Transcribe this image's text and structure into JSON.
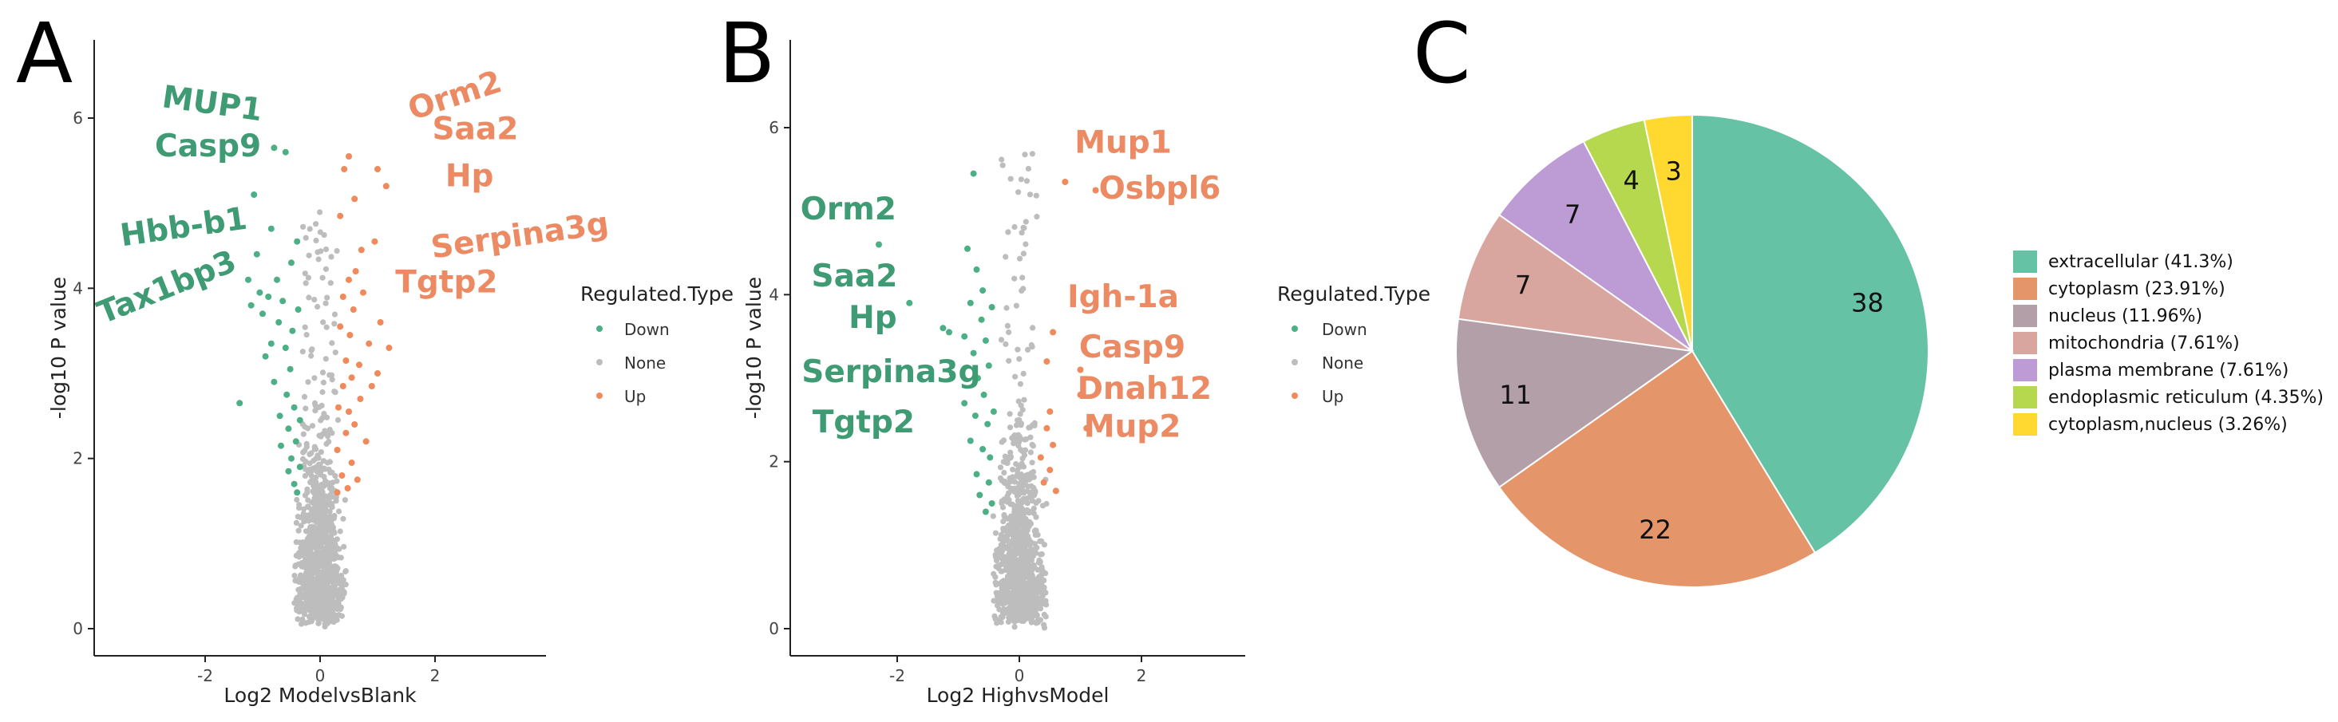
{
  "chart_data": [
    {
      "type": "scatter",
      "panel": "A",
      "xlabel": "Log2 ModelvsBlank",
      "ylabel": "-log10 P value",
      "xlim": [
        -4,
        4
      ],
      "ylim": [
        -0.2,
        7.0
      ],
      "xticks": [
        -2,
        0,
        2
      ],
      "yticks": [
        0,
        2,
        4,
        6
      ],
      "legend": {
        "title": "Regulated.Type",
        "entries": [
          "Down",
          "None",
          "Up"
        ],
        "position": "right"
      },
      "colors": {
        "Down": "#4daf85",
        "None": "#bdbdbd",
        "Up": "#f08a5d"
      },
      "labels_down": [
        {
          "text": "MUP1",
          "x": -1.9,
          "y": 6.05,
          "rot": 8
        },
        {
          "text": "Casp9",
          "x": -1.95,
          "y": 5.55,
          "rot": 0
        },
        {
          "text": "Hbb-b1",
          "x": -2.35,
          "y": 4.6,
          "rot": -8
        },
        {
          "text": "Tax1bp3",
          "x": -2.6,
          "y": 3.9,
          "rot": -22
        }
      ],
      "labels_up": [
        {
          "text": "Orm2",
          "x": 2.4,
          "y": 6.15,
          "rot": -18
        },
        {
          "text": "Saa2",
          "x": 2.7,
          "y": 5.75,
          "rot": 0
        },
        {
          "text": "Hp",
          "x": 2.6,
          "y": 5.2,
          "rot": 0
        },
        {
          "text": "Serpina3g",
          "x": 3.5,
          "y": 4.5,
          "rot": -8
        },
        {
          "text": "Tgtp2",
          "x": 2.2,
          "y": 3.95,
          "rot": 0
        }
      ],
      "points_down": [
        [
          -1.4,
          2.65
        ],
        [
          -1.25,
          4.1
        ],
        [
          -1.2,
          3.8
        ],
        [
          -1.15,
          5.1
        ],
        [
          -1.1,
          4.4
        ],
        [
          -1.05,
          3.95
        ],
        [
          -1.0,
          3.7
        ],
        [
          -0.95,
          3.2
        ],
        [
          -0.9,
          3.9
        ],
        [
          -0.85,
          4.7
        ],
        [
          -0.85,
          3.35
        ],
        [
          -0.8,
          5.65
        ],
        [
          -0.8,
          2.9
        ],
        [
          -0.75,
          4.1
        ],
        [
          -0.72,
          3.6
        ],
        [
          -0.7,
          2.5
        ],
        [
          -0.68,
          2.15
        ],
        [
          -0.65,
          3.85
        ],
        [
          -0.6,
          3.3
        ],
        [
          -0.6,
          5.6
        ],
        [
          -0.58,
          2.75
        ],
        [
          -0.55,
          1.85
        ],
        [
          -0.55,
          2.35
        ],
        [
          -0.52,
          3.05
        ],
        [
          -0.5,
          4.3
        ],
        [
          -0.5,
          2.0
        ],
        [
          -0.48,
          3.5
        ],
        [
          -0.45,
          1.7
        ],
        [
          -0.45,
          2.6
        ],
        [
          -0.42,
          2.2
        ],
        [
          -0.4,
          4.55
        ],
        [
          -0.4,
          1.6
        ],
        [
          -0.38,
          3.75
        ],
        [
          -0.35,
          2.45
        ],
        [
          -0.35,
          1.9
        ]
      ],
      "points_up": [
        [
          0.3,
          1.6
        ],
        [
          0.3,
          2.1
        ],
        [
          0.32,
          2.6
        ],
        [
          0.35,
          4.85
        ],
        [
          0.35,
          3.55
        ],
        [
          0.38,
          1.8
        ],
        [
          0.4,
          2.85
        ],
        [
          0.4,
          3.9
        ],
        [
          0.42,
          5.4
        ],
        [
          0.45,
          2.3
        ],
        [
          0.45,
          3.15
        ],
        [
          0.48,
          1.65
        ],
        [
          0.5,
          5.55
        ],
        [
          0.5,
          4.1
        ],
        [
          0.5,
          2.55
        ],
        [
          0.52,
          3.45
        ],
        [
          0.55,
          1.95
        ],
        [
          0.55,
          2.95
        ],
        [
          0.58,
          3.75
        ],
        [
          0.6,
          5.05
        ],
        [
          0.6,
          2.4
        ],
        [
          0.62,
          4.2
        ],
        [
          0.65,
          1.75
        ],
        [
          0.68,
          3.1
        ],
        [
          0.7,
          2.7
        ],
        [
          0.72,
          4.45
        ],
        [
          0.75,
          3.95
        ],
        [
          0.8,
          2.2
        ],
        [
          0.85,
          3.35
        ],
        [
          0.9,
          2.85
        ],
        [
          0.95,
          4.55
        ],
        [
          1.0,
          3.0
        ],
        [
          1.0,
          5.4
        ],
        [
          1.05,
          3.6
        ],
        [
          1.15,
          5.2
        ],
        [
          1.2,
          3.3
        ]
      ],
      "none_spread": [
        [
          -0.45,
          0.45
        ],
        [
          0,
          4.9
        ]
      ]
    },
    {
      "type": "scatter",
      "panel": "B",
      "xlabel": "Log2 HighvsModel",
      "ylabel": "-log10 P value",
      "xlim": [
        -3.6,
        3.6
      ],
      "ylim": [
        -0.2,
        7.0
      ],
      "xticks": [
        -2,
        0,
        2
      ],
      "yticks": [
        0,
        2,
        4,
        6
      ],
      "legend": {
        "title": "Regulated.Type",
        "entries": [
          "Down",
          "None",
          "Up"
        ],
        "position": "right"
      },
      "colors": {
        "Down": "#4daf85",
        "None": "#bdbdbd",
        "Up": "#f08a5d"
      },
      "labels_down": [
        {
          "text": "Orm2",
          "x": -2.8,
          "y": 4.9,
          "rot": 0
        },
        {
          "text": "Saa2",
          "x": -2.7,
          "y": 4.1,
          "rot": 0
        },
        {
          "text": "Hp",
          "x": -2.4,
          "y": 3.6,
          "rot": 0
        },
        {
          "text": "Serpina3g",
          "x": -2.1,
          "y": 2.95,
          "rot": 0
        },
        {
          "text": "Tgtp2",
          "x": -2.55,
          "y": 2.35,
          "rot": 0
        }
      ],
      "labels_up": [
        {
          "text": "Mup1",
          "x": 1.7,
          "y": 5.7,
          "rot": 0
        },
        {
          "text": "Osbpl6",
          "x": 2.3,
          "y": 5.15,
          "rot": 0
        },
        {
          "text": "Igh-1a",
          "x": 1.7,
          "y": 3.85,
          "rot": 0
        },
        {
          "text": "Casp9",
          "x": 1.85,
          "y": 3.25,
          "rot": 0
        },
        {
          "text": "Dnah12",
          "x": 2.05,
          "y": 2.75,
          "rot": 0
        },
        {
          "text": "Mup2",
          "x": 1.85,
          "y": 2.3,
          "rot": 0
        }
      ],
      "points_down": [
        [
          -2.3,
          4.6
        ],
        [
          -1.8,
          3.9
        ],
        [
          -1.25,
          3.6
        ],
        [
          -1.15,
          3.55
        ],
        [
          -1.1,
          3.05
        ],
        [
          -0.9,
          3.5
        ],
        [
          -0.9,
          2.7
        ],
        [
          -0.85,
          4.55
        ],
        [
          -0.8,
          3.9
        ],
        [
          -0.8,
          2.25
        ],
        [
          -0.75,
          5.45
        ],
        [
          -0.75,
          3.3
        ],
        [
          -0.72,
          2.55
        ],
        [
          -0.7,
          1.85
        ],
        [
          -0.7,
          4.3
        ],
        [
          -0.68,
          3.0
        ],
        [
          -0.65,
          1.6
        ],
        [
          -0.62,
          3.7
        ],
        [
          -0.6,
          2.15
        ],
        [
          -0.6,
          4.05
        ],
        [
          -0.58,
          2.8
        ],
        [
          -0.55,
          1.4
        ],
        [
          -0.55,
          3.45
        ],
        [
          -0.52,
          2.45
        ],
        [
          -0.5,
          1.75
        ],
        [
          -0.5,
          3.15
        ],
        [
          -0.48,
          2.05
        ],
        [
          -0.45,
          3.85
        ],
        [
          -0.45,
          1.5
        ],
        [
          -0.42,
          2.6
        ]
      ],
      "points_up": [
        [
          0.35,
          2.05
        ],
        [
          0.4,
          1.75
        ],
        [
          0.45,
          3.2
        ],
        [
          0.45,
          2.4
        ],
        [
          0.5,
          2.6
        ],
        [
          0.5,
          1.9
        ],
        [
          0.55,
          2.2
        ],
        [
          0.55,
          3.55
        ],
        [
          0.75,
          5.35
        ],
        [
          1.25,
          5.25
        ],
        [
          1.0,
          3.1
        ],
        [
          1.0,
          2.8
        ],
        [
          1.1,
          2.4
        ],
        [
          0.6,
          1.65
        ]
      ],
      "none_spread": [
        [
          -0.45,
          0.45
        ],
        [
          0,
          5.75
        ]
      ]
    },
    {
      "type": "pie",
      "panel": "C",
      "values": [
        38,
        22,
        11,
        7,
        7,
        4,
        3
      ],
      "categories": [
        "extracellular",
        "cytoplasm",
        "nucleus",
        "mitochondria",
        "plasma membrane",
        "endoplasmic reticulum",
        "cytoplasm,nucleus"
      ],
      "legend_labels": [
        "extracellular (41.3%)",
        "cytoplasm (23.91%)",
        "nucleus (11.96%)",
        "mitochondria (7.61%)",
        "plasma membrane (7.61%)",
        "endoplasmic reticulum (4.35%)",
        "cytoplasm,nucleus (3.26%)"
      ],
      "slice_labels": [
        "38",
        "22",
        "11",
        "7",
        "7",
        "4",
        "3"
      ],
      "colors": [
        "#66c2a5",
        "#e5956a",
        "#b39fa8",
        "#d9a59f",
        "#bd9cd6",
        "#b5d84e",
        "#ffd92f"
      ],
      "legend": {
        "position": "right"
      }
    }
  ],
  "panels": {
    "a": "A",
    "b": "B",
    "c": "C"
  },
  "legend": {
    "title": "Regulated.Type",
    "down": "Down",
    "none": "None",
    "up": "Up"
  },
  "axes": {
    "a_xlabel": "Log2 ModelvsBlank",
    "b_xlabel": "Log2 HighvsModel",
    "ylabel": "-log10 P value"
  }
}
